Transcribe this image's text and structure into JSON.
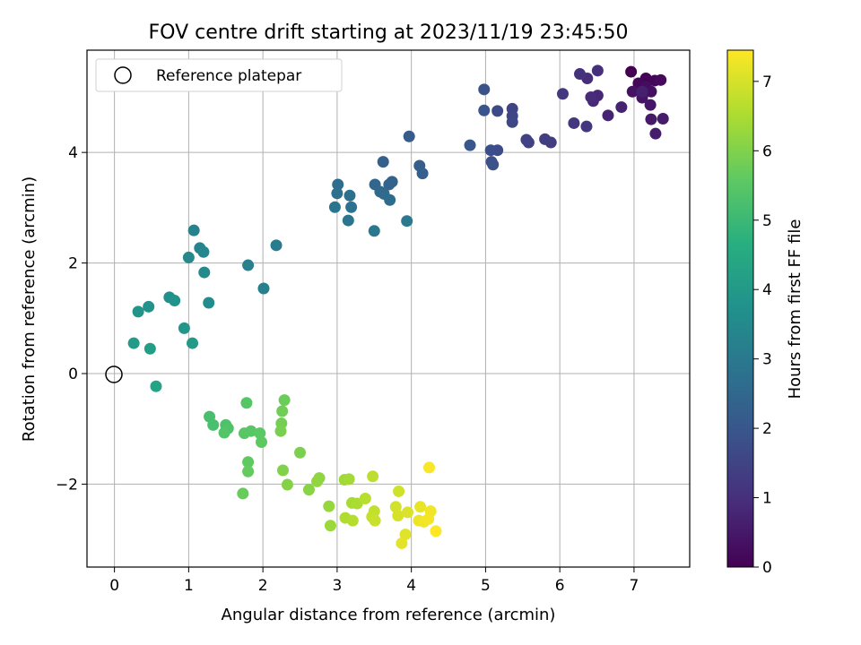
{
  "chart_data": {
    "type": "scatter",
    "title": "FOV centre drift starting at 2023/11/19 23:45:50",
    "xlabel": "Angular distance from reference (arcmin)",
    "ylabel": "Rotation from reference (arcmin)",
    "xlim": [
      -0.37,
      7.75
    ],
    "ylim": [
      -3.5,
      5.85
    ],
    "xticks": [
      0,
      1,
      2,
      3,
      4,
      5,
      6,
      7
    ],
    "yticks": [
      -2,
      0,
      2,
      4
    ],
    "grid": true,
    "legend": {
      "position": "top-left",
      "entries": [
        "Reference platepar"
      ]
    },
    "reference_point": {
      "x": 0,
      "y": 0
    },
    "colorbar": {
      "label": "Hours from first FF file",
      "range": [
        0,
        7.45
      ],
      "ticks": [
        0,
        1,
        2,
        3,
        4,
        5,
        6,
        7
      ],
      "colormap": "viridis"
    },
    "points": [
      {
        "x": 6.96,
        "y": 5.46,
        "h": 0.0
      },
      {
        "x": 7.16,
        "y": 5.34,
        "h": 0.05
      },
      {
        "x": 7.28,
        "y": 5.3,
        "h": 0.1
      },
      {
        "x": 7.06,
        "y": 5.25,
        "h": 0.15
      },
      {
        "x": 7.36,
        "y": 5.31,
        "h": 0.2
      },
      {
        "x": 7.16,
        "y": 5.19,
        "h": 0.25
      },
      {
        "x": 7.23,
        "y": 5.1,
        "h": 0.3
      },
      {
        "x": 6.98,
        "y": 5.1,
        "h": 0.35
      },
      {
        "x": 7.11,
        "y": 4.99,
        "h": 0.4
      },
      {
        "x": 7.22,
        "y": 4.86,
        "h": 0.45
      },
      {
        "x": 7.23,
        "y": 4.6,
        "h": 0.5
      },
      {
        "x": 7.39,
        "y": 4.61,
        "h": 0.55
      },
      {
        "x": 7.29,
        "y": 4.34,
        "h": 0.6
      },
      {
        "x": 7.11,
        "y": 5.1,
        "h": 0.65
      },
      {
        "x": 6.83,
        "y": 4.82,
        "h": 0.7
      },
      {
        "x": 6.65,
        "y": 4.67,
        "h": 0.75
      },
      {
        "x": 6.51,
        "y": 5.03,
        "h": 0.8
      },
      {
        "x": 6.45,
        "y": 4.93,
        "h": 0.85
      },
      {
        "x": 6.42,
        "y": 5.0,
        "h": 0.9
      },
      {
        "x": 6.37,
        "y": 5.34,
        "h": 0.95
      },
      {
        "x": 6.51,
        "y": 5.48,
        "h": 1.0
      },
      {
        "x": 6.27,
        "y": 5.42,
        "h": 1.05
      },
      {
        "x": 6.36,
        "y": 4.47,
        "h": 1.1
      },
      {
        "x": 6.19,
        "y": 4.53,
        "h": 1.15
      },
      {
        "x": 6.04,
        "y": 5.06,
        "h": 1.2
      },
      {
        "x": 5.88,
        "y": 4.18,
        "h": 1.3
      },
      {
        "x": 5.8,
        "y": 4.24,
        "h": 1.35
      },
      {
        "x": 5.58,
        "y": 4.18,
        "h": 1.4
      },
      {
        "x": 5.55,
        "y": 4.23,
        "h": 1.45
      },
      {
        "x": 5.36,
        "y": 4.79,
        "h": 1.5
      },
      {
        "x": 5.36,
        "y": 4.66,
        "h": 1.55
      },
      {
        "x": 5.36,
        "y": 4.55,
        "h": 1.6
      },
      {
        "x": 5.16,
        "y": 4.75,
        "h": 1.65
      },
      {
        "x": 5.16,
        "y": 4.04,
        "h": 1.7
      },
      {
        "x": 5.07,
        "y": 4.04,
        "h": 1.75
      },
      {
        "x": 5.08,
        "y": 3.83,
        "h": 1.8
      },
      {
        "x": 5.1,
        "y": 3.78,
        "h": 1.85
      },
      {
        "x": 4.98,
        "y": 5.14,
        "h": 1.9
      },
      {
        "x": 4.98,
        "y": 4.76,
        "h": 1.95
      },
      {
        "x": 4.79,
        "y": 4.13,
        "h": 2.0
      },
      {
        "x": 3.97,
        "y": 4.29,
        "h": 2.15
      },
      {
        "x": 4.11,
        "y": 3.76,
        "h": 2.2
      },
      {
        "x": 4.15,
        "y": 3.62,
        "h": 2.25
      },
      {
        "x": 3.62,
        "y": 3.83,
        "h": 2.3
      },
      {
        "x": 3.74,
        "y": 3.47,
        "h": 2.35
      },
      {
        "x": 3.7,
        "y": 3.42,
        "h": 2.4
      },
      {
        "x": 3.51,
        "y": 3.42,
        "h": 2.45
      },
      {
        "x": 3.58,
        "y": 3.29,
        "h": 2.5
      },
      {
        "x": 3.63,
        "y": 3.25,
        "h": 2.55
      },
      {
        "x": 3.71,
        "y": 3.14,
        "h": 2.6
      },
      {
        "x": 3.01,
        "y": 3.42,
        "h": 2.65
      },
      {
        "x": 3.0,
        "y": 3.26,
        "h": 2.7
      },
      {
        "x": 3.17,
        "y": 3.22,
        "h": 2.75
      },
      {
        "x": 3.19,
        "y": 3.01,
        "h": 2.8
      },
      {
        "x": 2.97,
        "y": 3.01,
        "h": 2.85
      },
      {
        "x": 3.15,
        "y": 2.77,
        "h": 2.9
      },
      {
        "x": 3.5,
        "y": 2.58,
        "h": 2.95
      },
      {
        "x": 3.94,
        "y": 2.76,
        "h": 3.0
      },
      {
        "x": 2.18,
        "y": 2.32,
        "h": 3.1
      },
      {
        "x": 1.8,
        "y": 1.96,
        "h": 3.2
      },
      {
        "x": 2.01,
        "y": 1.54,
        "h": 3.25
      },
      {
        "x": 1.07,
        "y": 2.59,
        "h": 3.3
      },
      {
        "x": 1.15,
        "y": 2.27,
        "h": 3.35
      },
      {
        "x": 1.2,
        "y": 2.2,
        "h": 3.4
      },
      {
        "x": 1.0,
        "y": 2.1,
        "h": 3.45
      },
      {
        "x": 1.21,
        "y": 1.83,
        "h": 3.5
      },
      {
        "x": 1.27,
        "y": 1.28,
        "h": 3.6
      },
      {
        "x": 0.74,
        "y": 1.38,
        "h": 3.7
      },
      {
        "x": 0.81,
        "y": 1.32,
        "h": 3.75
      },
      {
        "x": 0.46,
        "y": 1.21,
        "h": 3.8
      },
      {
        "x": 0.32,
        "y": 1.12,
        "h": 3.85
      },
      {
        "x": 0.94,
        "y": 0.82,
        "h": 3.9
      },
      {
        "x": 1.05,
        "y": 0.55,
        "h": 4.0
      },
      {
        "x": 0.26,
        "y": 0.55,
        "h": 4.05
      },
      {
        "x": 0.48,
        "y": 0.45,
        "h": 4.1
      },
      {
        "x": 0.56,
        "y": -0.23,
        "h": 4.3
      },
      {
        "x": 1.28,
        "y": -0.78,
        "h": 5.2
      },
      {
        "x": 1.33,
        "y": -0.93,
        "h": 5.25
      },
      {
        "x": 1.5,
        "y": -0.93,
        "h": 5.3
      },
      {
        "x": 1.53,
        "y": -0.99,
        "h": 5.35
      },
      {
        "x": 1.48,
        "y": -1.07,
        "h": 5.4
      },
      {
        "x": 1.78,
        "y": -0.53,
        "h": 5.45
      },
      {
        "x": 1.75,
        "y": -1.08,
        "h": 5.5
      },
      {
        "x": 1.84,
        "y": -1.04,
        "h": 5.5
      },
      {
        "x": 1.96,
        "y": -1.08,
        "h": 5.55
      },
      {
        "x": 1.98,
        "y": -1.24,
        "h": 5.6
      },
      {
        "x": 1.8,
        "y": -1.6,
        "h": 5.6
      },
      {
        "x": 1.8,
        "y": -1.77,
        "h": 5.65
      },
      {
        "x": 1.73,
        "y": -2.17,
        "h": 5.7
      },
      {
        "x": 2.29,
        "y": -0.48,
        "h": 5.75
      },
      {
        "x": 2.26,
        "y": -0.68,
        "h": 5.8
      },
      {
        "x": 2.25,
        "y": -0.9,
        "h": 5.85
      },
      {
        "x": 2.24,
        "y": -1.04,
        "h": 5.9
      },
      {
        "x": 2.5,
        "y": -1.43,
        "h": 5.95
      },
      {
        "x": 2.27,
        "y": -1.75,
        "h": 6.0
      },
      {
        "x": 2.33,
        "y": -2.01,
        "h": 6.05
      },
      {
        "x": 2.62,
        "y": -2.1,
        "h": 6.1
      },
      {
        "x": 2.76,
        "y": -1.89,
        "h": 6.15
      },
      {
        "x": 2.73,
        "y": -1.95,
        "h": 6.2
      },
      {
        "x": 2.89,
        "y": -2.4,
        "h": 6.25
      },
      {
        "x": 2.91,
        "y": -2.75,
        "h": 6.3
      },
      {
        "x": 3.1,
        "y": -1.92,
        "h": 6.35
      },
      {
        "x": 3.16,
        "y": -1.91,
        "h": 6.4
      },
      {
        "x": 3.2,
        "y": -2.34,
        "h": 6.45
      },
      {
        "x": 3.27,
        "y": -2.35,
        "h": 6.5
      },
      {
        "x": 3.11,
        "y": -2.61,
        "h": 6.55
      },
      {
        "x": 3.21,
        "y": -2.66,
        "h": 6.6
      },
      {
        "x": 3.38,
        "y": -2.26,
        "h": 6.65
      },
      {
        "x": 3.48,
        "y": -1.86,
        "h": 6.7
      },
      {
        "x": 3.5,
        "y": -2.49,
        "h": 6.75
      },
      {
        "x": 3.47,
        "y": -2.59,
        "h": 6.8
      },
      {
        "x": 3.51,
        "y": -2.66,
        "h": 6.85
      },
      {
        "x": 3.83,
        "y": -2.13,
        "h": 6.9
      },
      {
        "x": 3.79,
        "y": -2.41,
        "h": 6.95
      },
      {
        "x": 3.82,
        "y": -2.57,
        "h": 7.0
      },
      {
        "x": 3.95,
        "y": -2.51,
        "h": 7.05
      },
      {
        "x": 3.92,
        "y": -2.91,
        "h": 7.1
      },
      {
        "x": 3.87,
        "y": -3.07,
        "h": 7.15
      },
      {
        "x": 4.12,
        "y": -2.41,
        "h": 7.2
      },
      {
        "x": 4.1,
        "y": -2.66,
        "h": 7.25
      },
      {
        "x": 4.17,
        "y": -2.68,
        "h": 7.3
      },
      {
        "x": 4.26,
        "y": -2.49,
        "h": 7.3
      },
      {
        "x": 4.23,
        "y": -2.63,
        "h": 7.35
      },
      {
        "x": 4.24,
        "y": -1.7,
        "h": 7.4
      },
      {
        "x": 4.33,
        "y": -2.85,
        "h": 7.45
      }
    ]
  }
}
